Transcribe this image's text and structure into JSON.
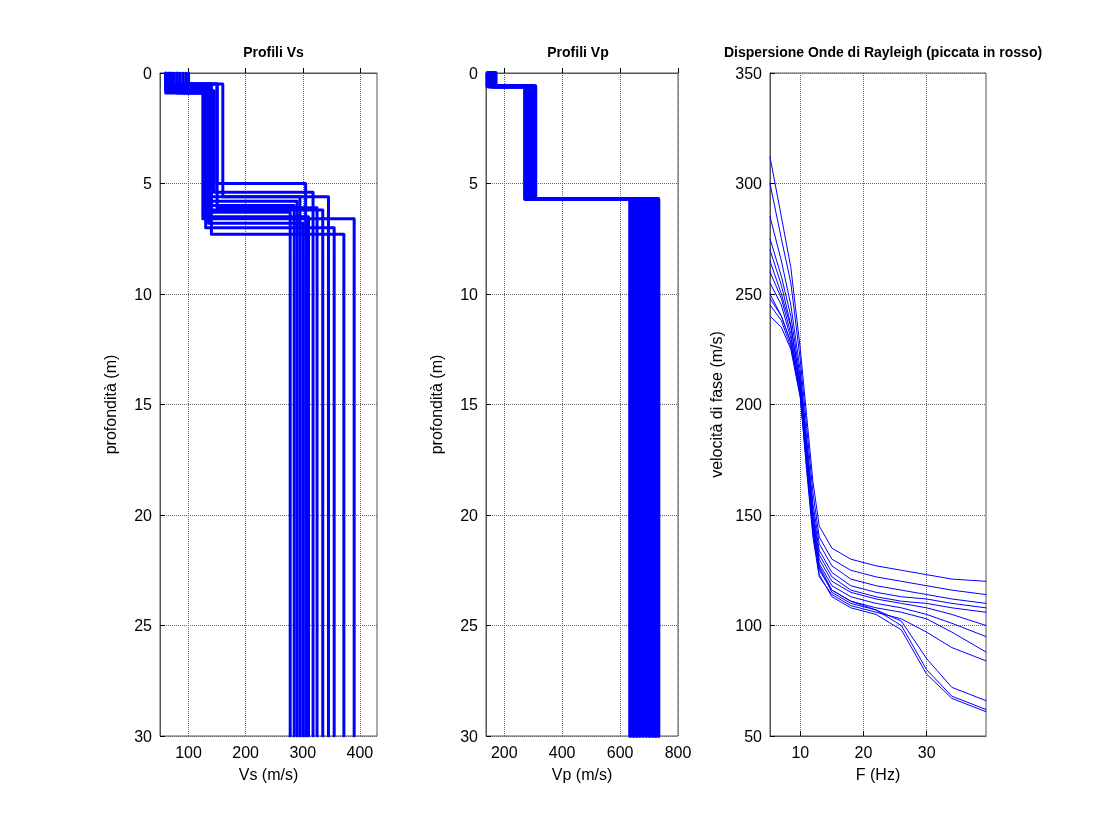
{
  "chart_data": [
    {
      "type": "line",
      "title": "Profili Vs",
      "xlabel": "Vs (m/s)",
      "ylabel": "profondità (m)",
      "xlim": [
        50,
        430
      ],
      "xticks": [
        100,
        200,
        300,
        400
      ],
      "ylim": [
        30,
        0
      ],
      "yticks": [
        0,
        5,
        10,
        15,
        20,
        25,
        30
      ],
      "grid": true,
      "marker": "none",
      "line_style": "solid",
      "series": [
        {
          "color": "#0000ff",
          "x": [
            65,
            65,
            150,
            150,
            305,
            305
          ],
          "values": [
            0,
            0.5,
            0.5,
            5.0,
            5.0,
            30
          ]
        },
        {
          "color": "#0000ff",
          "x": [
            60,
            60,
            130,
            130,
            335,
            335
          ],
          "values": [
            0,
            0.9,
            0.9,
            6.2,
            6.2,
            30
          ]
        },
        {
          "color": "#0000ff",
          "x": [
            95,
            95,
            160,
            160,
            345,
            345
          ],
          "values": [
            0,
            0.5,
            0.5,
            5.6,
            5.6,
            30
          ]
        },
        {
          "color": "#0000ff",
          "x": [
            70,
            70,
            125,
            125,
            390,
            390
          ],
          "values": [
            0,
            0.7,
            0.7,
            6.6,
            6.6,
            30
          ]
        },
        {
          "color": "#0000ff",
          "x": [
            80,
            80,
            130,
            130,
            355,
            355
          ],
          "values": [
            0,
            0.9,
            0.9,
            7.0,
            7.0,
            30
          ]
        },
        {
          "color": "#0000ff",
          "x": [
            100,
            100,
            150,
            150,
            325,
            325
          ],
          "values": [
            0,
            0.5,
            0.5,
            6.1,
            6.1,
            30
          ]
        },
        {
          "color": "#0000ff",
          "x": [
            60,
            60,
            140,
            140,
            372,
            372
          ],
          "values": [
            0,
            0.8,
            0.8,
            7.3,
            7.3,
            30
          ]
        },
        {
          "color": "#0000ff",
          "x": [
            75,
            75,
            135,
            135,
            290,
            290
          ],
          "values": [
            0,
            0.6,
            0.6,
            5.8,
            5.8,
            30
          ]
        },
        {
          "color": "#0000ff",
          "x": [
            85,
            85,
            140,
            140,
            278,
            278
          ],
          "values": [
            0,
            0.7,
            0.7,
            6.3,
            6.3,
            30
          ]
        },
        {
          "color": "#0000ff",
          "x": [
            90,
            90,
            130,
            130,
            310,
            310
          ],
          "values": [
            0,
            0.9,
            0.9,
            6.5,
            6.5,
            30
          ]
        },
        {
          "color": "#0000ff",
          "x": [
            65,
            65,
            145,
            145,
            318,
            318
          ],
          "values": [
            0,
            0.8,
            0.8,
            5.4,
            5.4,
            30
          ]
        },
        {
          "color": "#0000ff",
          "x": [
            70,
            70,
            135,
            135,
            300,
            300
          ],
          "values": [
            0,
            0.6,
            0.6,
            6.8,
            6.8,
            30
          ]
        },
        {
          "color": "#0000ff",
          "x": [
            80,
            80,
            130,
            130,
            285,
            285
          ],
          "values": [
            0,
            0.7,
            0.7,
            6.0,
            6.0,
            30
          ]
        },
        {
          "color": "#0000ff",
          "x": [
            60,
            60,
            140,
            140,
            295,
            295
          ],
          "values": [
            0,
            0.5,
            0.5,
            5.6,
            5.6,
            30
          ]
        }
      ]
    },
    {
      "type": "line",
      "title": "Profili Vp",
      "xlabel": "Vp (m/s)",
      "ylabel": "profondità (m)",
      "xlim": [
        137,
        800
      ],
      "xticks": [
        200,
        400,
        600,
        800
      ],
      "ylim": [
        30,
        0
      ],
      "yticks": [
        0,
        5,
        10,
        15,
        20,
        25,
        30
      ],
      "grid": true,
      "marker": "none",
      "line_style": "solid",
      "series": [
        {
          "color": "#0000ff",
          "x": [
            142,
            142,
            272,
            272,
            635,
            635
          ],
          "values": [
            0,
            0.6,
            0.6,
            5.7,
            5.7,
            30
          ]
        },
        {
          "color": "#0000ff",
          "x": [
            145,
            145,
            276,
            276,
            646,
            646
          ],
          "values": [
            0,
            0.6,
            0.6,
            5.7,
            5.7,
            30
          ]
        },
        {
          "color": "#0000ff",
          "x": [
            148,
            148,
            280,
            280,
            657,
            657
          ],
          "values": [
            0,
            0.6,
            0.6,
            5.7,
            5.7,
            30
          ]
        },
        {
          "color": "#0000ff",
          "x": [
            151,
            151,
            284,
            284,
            668,
            668
          ],
          "values": [
            0,
            0.6,
            0.6,
            5.7,
            5.7,
            30
          ]
        },
        {
          "color": "#0000ff",
          "x": [
            154,
            154,
            288,
            288,
            679,
            679
          ],
          "values": [
            0,
            0.6,
            0.6,
            5.7,
            5.7,
            30
          ]
        },
        {
          "color": "#0000ff",
          "x": [
            157,
            157,
            292,
            292,
            690,
            690
          ],
          "values": [
            0,
            0.6,
            0.6,
            5.7,
            5.7,
            30
          ]
        },
        {
          "color": "#0000ff",
          "x": [
            160,
            160,
            296,
            296,
            701,
            701
          ],
          "values": [
            0,
            0.6,
            0.6,
            5.7,
            5.7,
            30
          ]
        },
        {
          "color": "#0000ff",
          "x": [
            163,
            163,
            300,
            300,
            712,
            712
          ],
          "values": [
            0,
            0.6,
            0.6,
            5.7,
            5.7,
            30
          ]
        },
        {
          "color": "#0000ff",
          "x": [
            166,
            166,
            304,
            304,
            722,
            722
          ],
          "values": [
            0,
            0.6,
            0.6,
            5.7,
            5.7,
            30
          ]
        },
        {
          "color": "#0000ff",
          "x": [
            170,
            170,
            307,
            307,
            732,
            732
          ],
          "values": [
            0,
            0.6,
            0.6,
            5.7,
            5.7,
            30
          ]
        }
      ]
    },
    {
      "type": "line",
      "title": "Dispersione Onde di Rayleigh (piccata in rosso)",
      "xlabel": "F (Hz)",
      "ylabel": "velocità di fase (m/s)",
      "xlim": [
        5.2,
        39.4
      ],
      "xticks": [
        10,
        20,
        30
      ],
      "ylim": [
        50,
        350
      ],
      "yticks": [
        50,
        100,
        150,
        200,
        250,
        300,
        350
      ],
      "grid": true,
      "marker": "none",
      "line_style": "solid",
      "x": [
        5.2,
        7,
        8.5,
        10,
        11,
        12,
        13,
        15,
        18,
        22,
        26,
        30,
        34,
        39.4
      ],
      "series": [
        {
          "color": "#0000ff",
          "values": [
            312,
            285,
            262,
            225,
            195,
            165,
            145,
            135,
            130,
            127,
            125,
            123,
            121,
            120
          ]
        },
        {
          "color": "#0000ff",
          "values": [
            300,
            275,
            255,
            220,
            190,
            160,
            140,
            130,
            125,
            122,
            120,
            118,
            116,
            114
          ]
        },
        {
          "color": "#0000ff",
          "values": [
            285,
            265,
            245,
            215,
            185,
            155,
            137,
            127,
            121,
            118,
            116,
            114,
            112,
            110
          ]
        },
        {
          "color": "#0000ff",
          "values": [
            275,
            258,
            240,
            212,
            182,
            152,
            134,
            124,
            118,
            115,
            113,
            112,
            110,
            108
          ]
        },
        {
          "color": "#0000ff",
          "values": [
            265,
            250,
            235,
            210,
            180,
            150,
            132,
            122,
            116,
            113,
            111,
            110,
            108,
            106
          ]
        },
        {
          "color": "#0000ff",
          "values": [
            255,
            245,
            230,
            208,
            178,
            148,
            130,
            120,
            115,
            112,
            110,
            108,
            105,
            100
          ]
        },
        {
          "color": "#0000ff",
          "values": [
            248,
            240,
            228,
            205,
            175,
            146,
            128,
            118,
            113,
            110,
            108,
            105,
            101,
            95
          ]
        },
        {
          "color": "#0000ff",
          "values": [
            240,
            235,
            225,
            203,
            172,
            143,
            125,
            116,
            111,
            108,
            106,
            103,
            97,
            88
          ]
        },
        {
          "color": "#0000ff",
          "values": [
            245,
            238,
            226,
            204,
            170,
            140,
            122,
            114,
            109,
            106,
            103,
            97,
            90,
            84
          ]
        },
        {
          "color": "#0000ff",
          "values": [
            260,
            248,
            232,
            206,
            176,
            145,
            126,
            115,
            110,
            107,
            102,
            85,
            72,
            66
          ]
        },
        {
          "color": "#0000ff",
          "values": [
            270,
            254,
            236,
            208,
            178,
            147,
            127,
            116,
            111,
            107,
            100,
            80,
            68,
            62
          ]
        },
        {
          "color": "#0000ff",
          "values": [
            250,
            240,
            228,
            204,
            174,
            142,
            123,
            113,
            108,
            105,
            98,
            78,
            67,
            61
          ]
        }
      ]
    }
  ]
}
